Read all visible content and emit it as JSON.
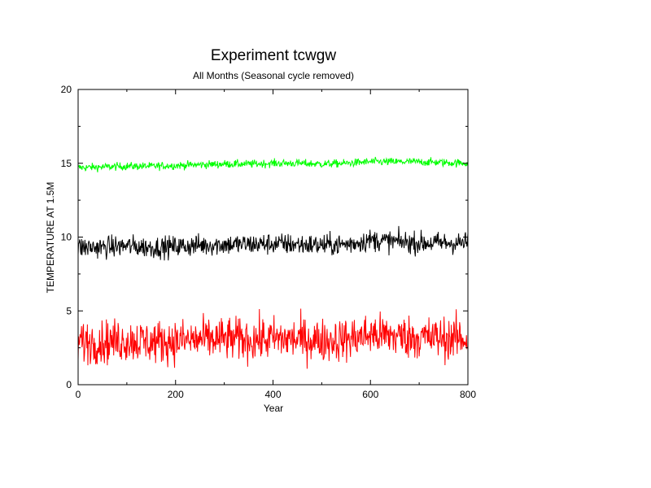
{
  "chart_data": {
    "type": "line",
    "title": "Experiment tcwgw",
    "subtitle": "All Months (Seasonal cycle removed)",
    "xlabel": "Year",
    "ylabel": "TEMPERATURE AT 1.5M",
    "xlim": [
      0,
      800
    ],
    "ylim": [
      0,
      20
    ],
    "xticks": [
      "0",
      "200",
      "400",
      "600",
      "800"
    ],
    "yticks": [
      "0",
      "5",
      "10",
      "15",
      "20"
    ],
    "grid": false,
    "legend": "none",
    "series": [
      {
        "color": "#00ff00",
        "x": [
          0,
          50,
          100,
          150,
          200,
          250,
          300,
          350,
          400,
          450,
          500,
          550,
          600,
          650,
          700,
          750,
          800
        ],
        "y": [
          14.7,
          14.75,
          14.8,
          14.8,
          14.85,
          14.9,
          14.95,
          14.95,
          15.0,
          15.0,
          14.95,
          15.0,
          15.1,
          15.1,
          15.1,
          15.05,
          15.0
        ],
        "noise": 0.4
      },
      {
        "color": "#000000",
        "x": [
          0,
          50,
          100,
          150,
          200,
          250,
          300,
          350,
          400,
          450,
          500,
          550,
          600,
          650,
          700,
          750,
          800
        ],
        "y": [
          9.3,
          9.3,
          9.4,
          9.3,
          9.35,
          9.45,
          9.5,
          9.5,
          9.55,
          9.5,
          9.45,
          9.5,
          9.8,
          9.7,
          9.6,
          9.6,
          9.6
        ],
        "noise": 1.1
      },
      {
        "color": "#ff0000",
        "x": [
          0,
          50,
          100,
          150,
          200,
          250,
          300,
          350,
          400,
          450,
          500,
          550,
          600,
          650,
          700,
          750,
          800
        ],
        "y": [
          2.9,
          2.9,
          3.0,
          2.9,
          2.95,
          3.05,
          3.1,
          3.05,
          3.1,
          3.1,
          3.0,
          3.05,
          3.4,
          3.3,
          3.2,
          3.15,
          3.1
        ],
        "noise": 2.2
      }
    ]
  }
}
